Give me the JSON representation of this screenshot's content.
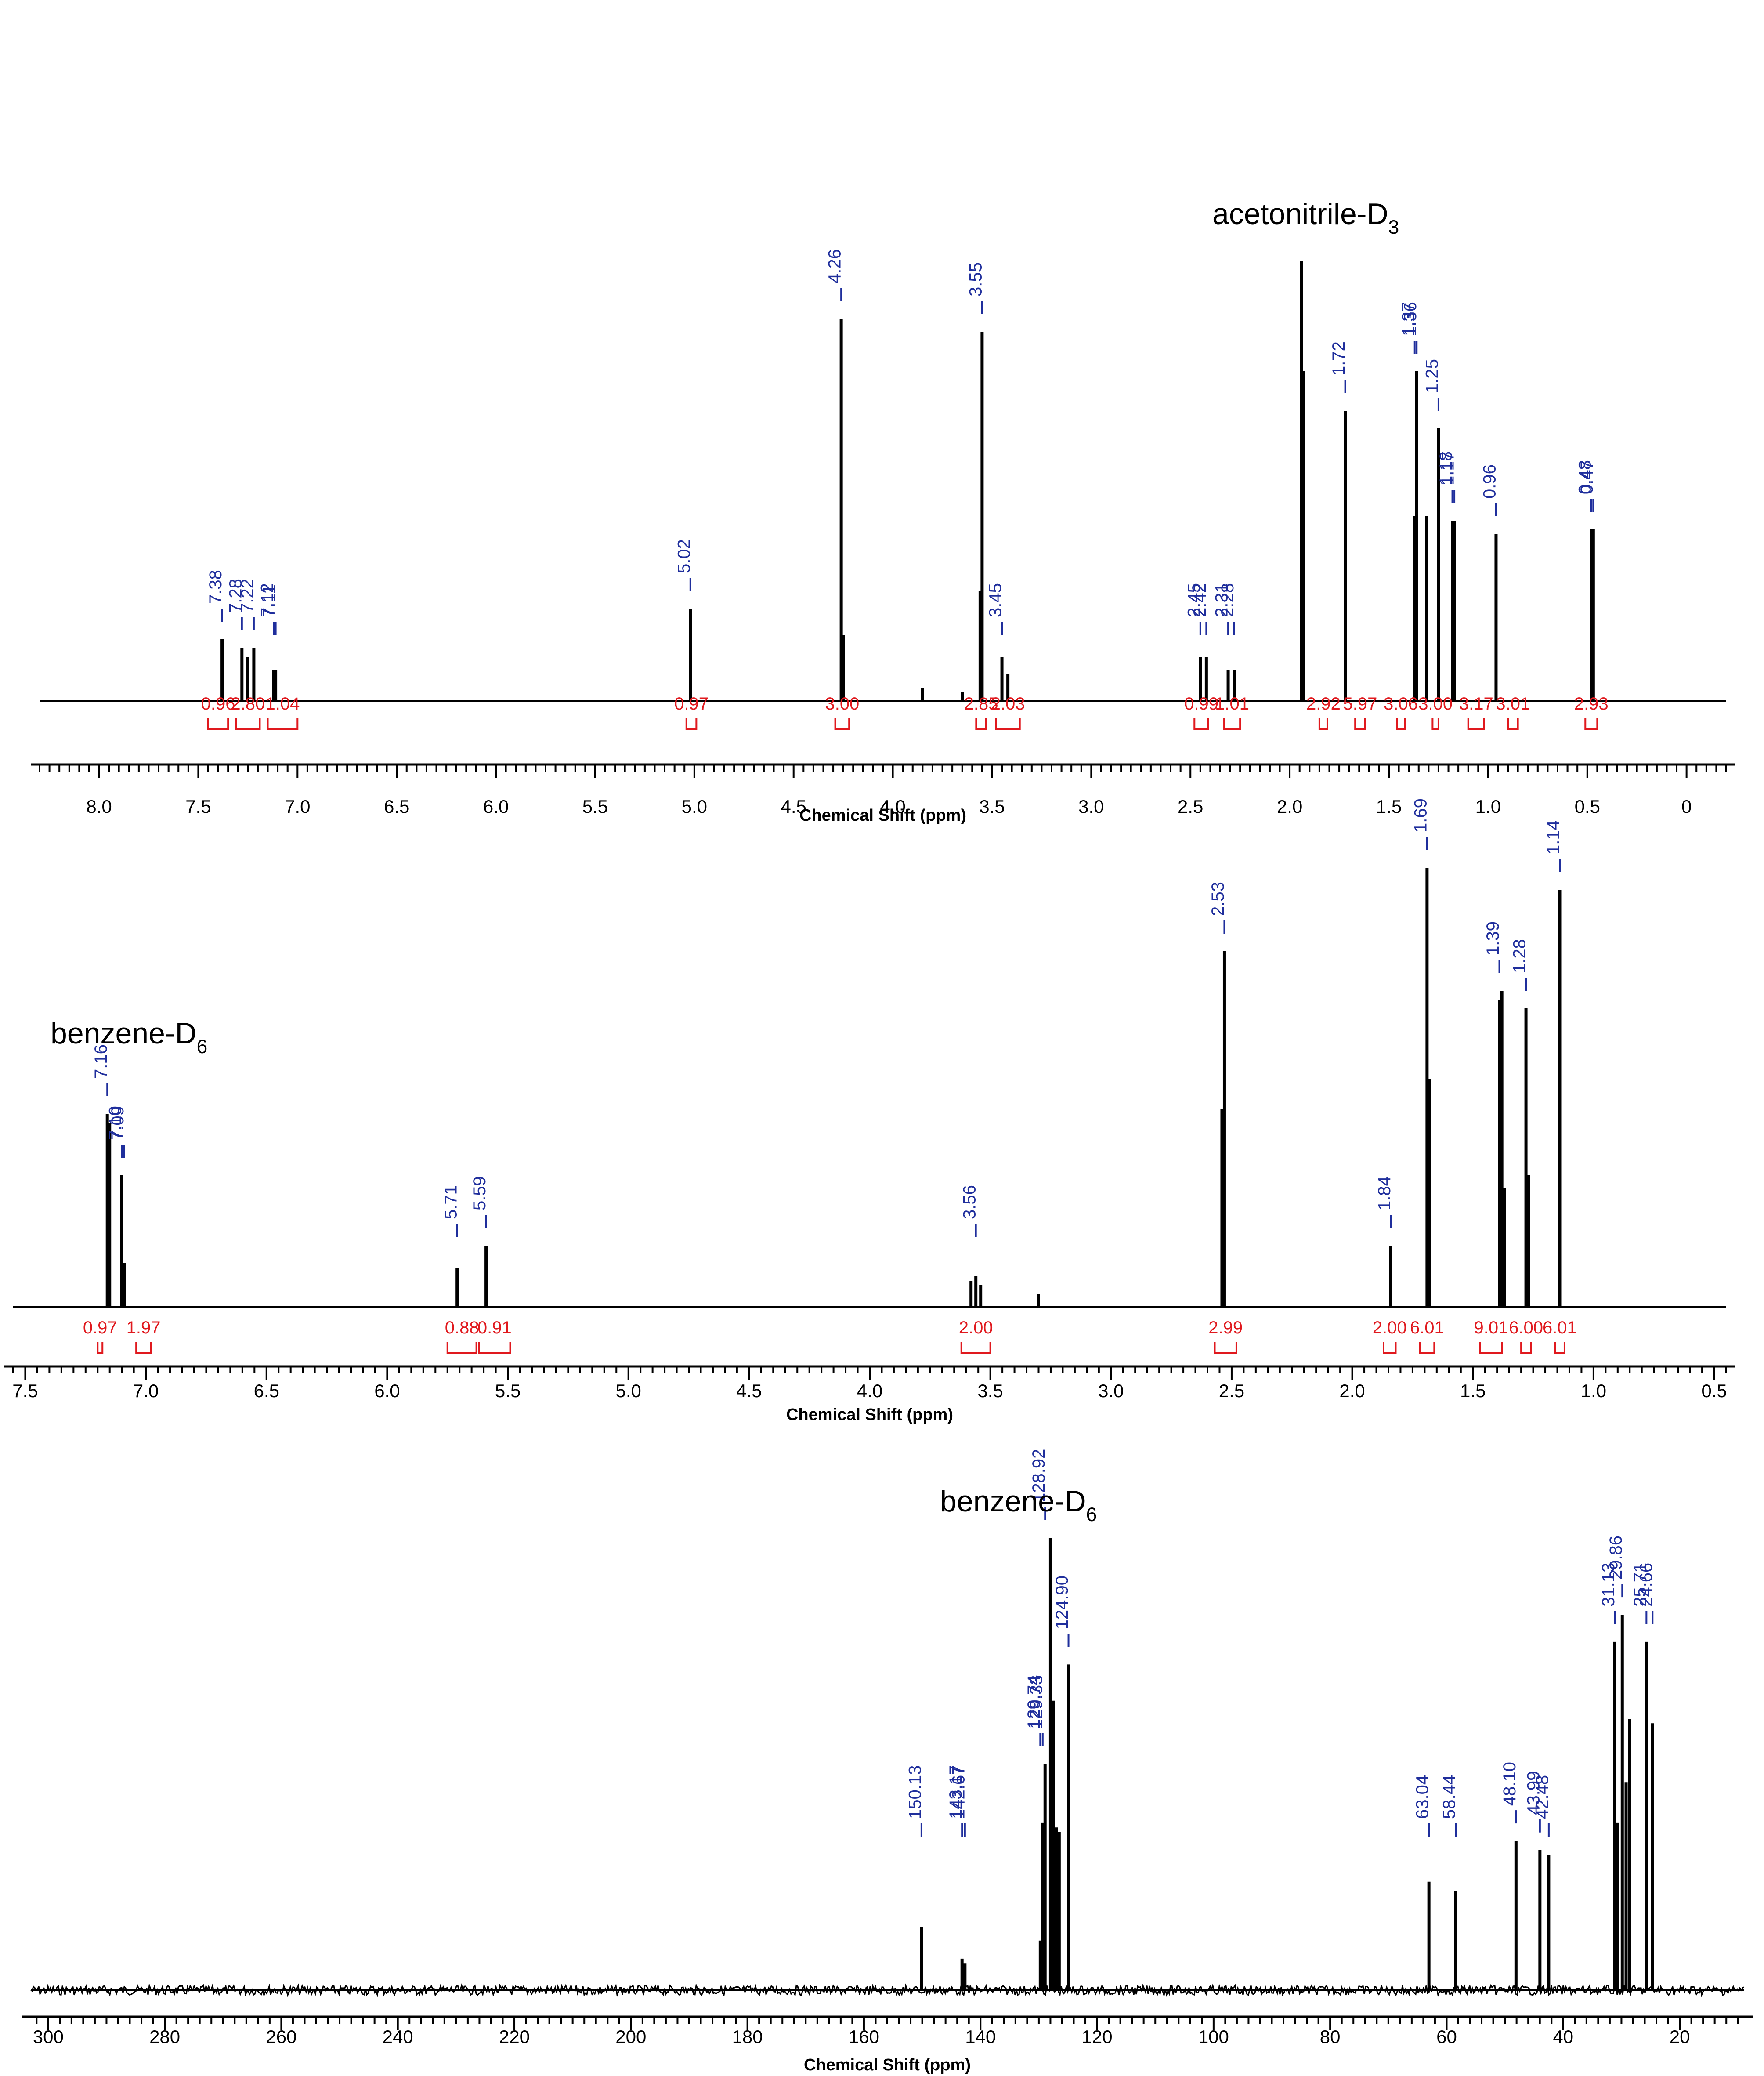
{
  "chart_data": [
    {
      "type": "line",
      "title": "",
      "solvent_label": "acetonitrile-D",
      "solvent_sub": "3",
      "xlabel": "Chemical Shift (ppm)",
      "xlim": [
        8.3,
        -0.2
      ],
      "ylim": [
        0,
        1.0
      ],
      "ticks": [
        "8.0",
        "7.5",
        "7.0",
        "6.5",
        "6.0",
        "5.5",
        "5.0",
        "4.5",
        "4.0",
        "3.5",
        "3.0",
        "2.5",
        "2.0",
        "1.5",
        "1.0",
        "0.5",
        "0"
      ],
      "colors": {
        "trace": "#000000",
        "peak_label": "#1f2e9c",
        "integral": "#e0191e"
      },
      "peaks": [
        {
          "x": 7.38,
          "y": 0.14
        },
        {
          "x": 7.28,
          "y": 0.12
        },
        {
          "x": 7.25,
          "y": 0.1
        },
        {
          "x": 7.22,
          "y": 0.12
        },
        {
          "x": 7.12,
          "y": 0.07
        },
        {
          "x": 7.11,
          "y": 0.07
        },
        {
          "x": 5.02,
          "y": 0.21
        },
        {
          "x": 4.26,
          "y": 0.87
        },
        {
          "x": 4.25,
          "y": 0.15
        },
        {
          "x": 3.85,
          "y": 0.03
        },
        {
          "x": 3.65,
          "y": 0.02
        },
        {
          "x": 3.55,
          "y": 0.84
        },
        {
          "x": 3.56,
          "y": 0.25
        },
        {
          "x": 3.45,
          "y": 0.1
        },
        {
          "x": 3.42,
          "y": 0.06
        },
        {
          "x": 2.45,
          "y": 0.1
        },
        {
          "x": 2.42,
          "y": 0.1
        },
        {
          "x": 2.31,
          "y": 0.07
        },
        {
          "x": 2.28,
          "y": 0.07
        },
        {
          "x": 1.94,
          "y": 1.0
        },
        {
          "x": 1.93,
          "y": 0.75
        },
        {
          "x": 1.72,
          "y": 0.66
        },
        {
          "x": 1.37,
          "y": 0.42
        },
        {
          "x": 1.36,
          "y": 0.75
        },
        {
          "x": 1.31,
          "y": 0.42
        },
        {
          "x": 1.25,
          "y": 0.62
        },
        {
          "x": 1.18,
          "y": 0.41
        },
        {
          "x": 1.17,
          "y": 0.41
        },
        {
          "x": 0.96,
          "y": 0.38
        },
        {
          "x": 0.48,
          "y": 0.39
        },
        {
          "x": 0.47,
          "y": 0.39
        }
      ],
      "peak_labels": [
        "7.38",
        "7.28",
        "7.22",
        "7.12",
        "7.11",
        "5.02",
        "4.26",
        "3.55",
        "3.45",
        "2.45",
        "2.42",
        "2.31",
        "2.28",
        "1.72",
        "1.37",
        "1.36",
        "1.25",
        "1.18",
        "1.17",
        "0.96",
        "0.48",
        "0.47"
      ],
      "integrals": [
        {
          "value": "0.96",
          "from": 7.45,
          "to": 7.35
        },
        {
          "value": "2.80",
          "from": 7.31,
          "to": 7.19
        },
        {
          "value": "1.04",
          "from": 7.15,
          "to": 7.0
        },
        {
          "value": "0.97",
          "from": 5.04,
          "to": 4.99
        },
        {
          "value": "3.00",
          "from": 4.29,
          "to": 4.22
        },
        {
          "value": "2.85",
          "from": 3.58,
          "to": 3.53
        },
        {
          "value": "2.03",
          "from": 3.48,
          "to": 3.36
        },
        {
          "value": "0.99",
          "from": 2.48,
          "to": 2.41
        },
        {
          "value": "1.01",
          "from": 2.33,
          "to": 2.25
        },
        {
          "value": "2.92",
          "from": 1.85,
          "to": 1.81
        },
        {
          "value": "5.97",
          "from": 1.67,
          "to": 1.62
        },
        {
          "value": "3.06",
          "from": 1.46,
          "to": 1.42
        },
        {
          "value": "3.00",
          "from": 1.28,
          "to": 1.25
        },
        {
          "value": "3.17",
          "from": 1.1,
          "to": 1.02
        },
        {
          "value": "3.01",
          "from": 0.9,
          "to": 0.85
        },
        {
          "value": "2.93",
          "from": 0.51,
          "to": 0.45
        }
      ]
    },
    {
      "type": "line",
      "title": "",
      "solvent_label": "benzene-D",
      "solvent_sub": "6",
      "xlabel": "Chemical Shift (ppm)",
      "xlim": [
        7.55,
        0.45
      ],
      "ylim": [
        0,
        1.0
      ],
      "ticks": [
        "7.5",
        "7.0",
        "6.5",
        "6.0",
        "5.5",
        "5.0",
        "4.5",
        "4.0",
        "3.5",
        "3.0",
        "2.5",
        "2.0",
        "1.5",
        "1.0",
        "0.5"
      ],
      "colors": {
        "trace": "#000000",
        "peak_label": "#1f2e9c",
        "integral": "#e0191e"
      },
      "peaks": [
        {
          "x": 7.16,
          "y": 0.44
        },
        {
          "x": 7.15,
          "y": 0.42
        },
        {
          "x": 7.1,
          "y": 0.3
        },
        {
          "x": 7.09,
          "y": 0.1
        },
        {
          "x": 5.71,
          "y": 0.09
        },
        {
          "x": 5.59,
          "y": 0.14
        },
        {
          "x": 3.58,
          "y": 0.06
        },
        {
          "x": 3.56,
          "y": 0.07
        },
        {
          "x": 3.54,
          "y": 0.05
        },
        {
          "x": 3.3,
          "y": 0.03
        },
        {
          "x": 2.53,
          "y": 0.81
        },
        {
          "x": 2.54,
          "y": 0.45
        },
        {
          "x": 1.84,
          "y": 0.14
        },
        {
          "x": 1.69,
          "y": 1.0
        },
        {
          "x": 1.68,
          "y": 0.52
        },
        {
          "x": 1.39,
          "y": 0.7
        },
        {
          "x": 1.38,
          "y": 0.72
        },
        {
          "x": 1.37,
          "y": 0.27
        },
        {
          "x": 1.28,
          "y": 0.68
        },
        {
          "x": 1.27,
          "y": 0.3
        },
        {
          "x": 1.14,
          "y": 0.95
        }
      ],
      "peak_labels": [
        "7.16",
        "7.10",
        "7.09",
        "5.71",
        "5.59",
        "3.56",
        "2.53",
        "1.84",
        "1.69",
        "1.39",
        "1.39",
        "1.28",
        "1.14"
      ],
      "integrals": [
        {
          "value": "0.97",
          "from": 7.2,
          "to": 7.18
        },
        {
          "value": "1.97",
          "from": 7.04,
          "to": 6.98
        },
        {
          "value": "0.88",
          "from": 5.75,
          "to": 5.63
        },
        {
          "value": "0.91",
          "from": 5.62,
          "to": 5.49
        },
        {
          "value": "2.00",
          "from": 3.62,
          "to": 3.5
        },
        {
          "value": "2.99",
          "from": 2.57,
          "to": 2.48
        },
        {
          "value": "2.00",
          "from": 1.87,
          "to": 1.82
        },
        {
          "value": "6.01",
          "from": 1.72,
          "to": 1.66
        },
        {
          "value": "9.01",
          "from": 1.47,
          "to": 1.38
        },
        {
          "value": "6.00",
          "from": 1.3,
          "to": 1.26
        },
        {
          "value": "6.01",
          "from": 1.16,
          "to": 1.12
        }
      ]
    },
    {
      "type": "line",
      "title": "",
      "solvent_label": "benzene-D",
      "solvent_sub": "6",
      "xlabel": "Chemical Shift (ppm)",
      "xlim": [
        303,
        9
      ],
      "ylim": [
        0,
        1.0
      ],
      "ticks": [
        "300",
        "280",
        "260",
        "240",
        "220",
        "200",
        "180",
        "160",
        "140",
        "120",
        "100",
        "80",
        "60",
        "40",
        "20"
      ],
      "colors": {
        "trace": "#000000",
        "peak_label": "#1f2e9c",
        "integral": "#e0191e"
      },
      "peaks": [
        {
          "x": 150.13,
          "y": 0.14
        },
        {
          "x": 143.17,
          "y": 0.07
        },
        {
          "x": 142.67,
          "y": 0.06
        },
        {
          "x": 129.74,
          "y": 0.11
        },
        {
          "x": 129.33,
          "y": 0.37
        },
        {
          "x": 128.92,
          "y": 0.5
        },
        {
          "x": 128.0,
          "y": 1.0
        },
        {
          "x": 127.5,
          "y": 0.64
        },
        {
          "x": 127.0,
          "y": 0.36
        },
        {
          "x": 126.5,
          "y": 0.35
        },
        {
          "x": 124.9,
          "y": 0.72
        },
        {
          "x": 63.04,
          "y": 0.24
        },
        {
          "x": 58.44,
          "y": 0.22
        },
        {
          "x": 48.1,
          "y": 0.33
        },
        {
          "x": 43.99,
          "y": 0.31
        },
        {
          "x": 42.48,
          "y": 0.3
        },
        {
          "x": 31.13,
          "y": 0.77
        },
        {
          "x": 30.6,
          "y": 0.37
        },
        {
          "x": 29.86,
          "y": 0.83
        },
        {
          "x": 29.2,
          "y": 0.46
        },
        {
          "x": 28.6,
          "y": 0.6
        },
        {
          "x": 25.71,
          "y": 0.77
        },
        {
          "x": 24.66,
          "y": 0.59
        }
      ],
      "peak_labels": [
        "150.13",
        "143.17",
        "142.67",
        "129.74",
        "129.33",
        "128.92",
        "124.90",
        "63.04",
        "58.44",
        "48.10",
        "43.99",
        "42.48",
        "31.13",
        "29.86",
        "25.71",
        "24.66"
      ],
      "integrals": []
    }
  ]
}
